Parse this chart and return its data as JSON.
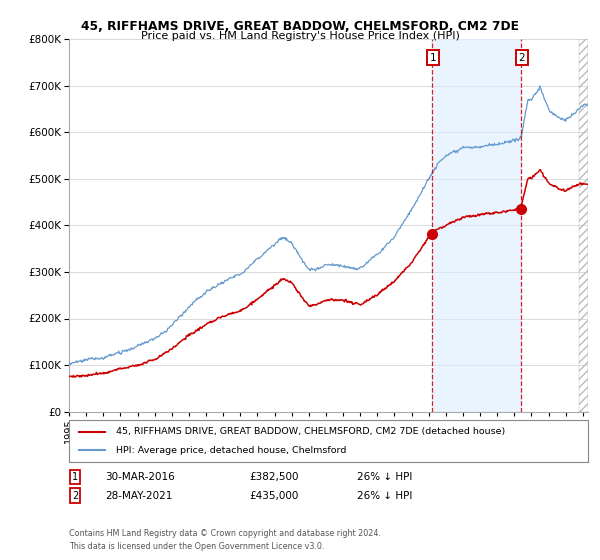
{
  "title_line1": "45, RIFFHAMS DRIVE, GREAT BADDOW, CHELMSFORD, CM2 7DE",
  "title_line2": "Price paid vs. HM Land Registry's House Price Index (HPI)",
  "sale1": {
    "date": "30-MAR-2016",
    "price": 382500,
    "pct": "26% ↓ HPI",
    "year": 2016.22
  },
  "sale2": {
    "date": "28-MAY-2021",
    "price": 435000,
    "pct": "26% ↓ HPI",
    "year": 2021.4
  },
  "legend_red": "45, RIFFHAMS DRIVE, GREAT BADDOW, CHELMSFORD, CM2 7DE (detached house)",
  "legend_blue": "HPI: Average price, detached house, Chelmsford",
  "footnote": "Contains HM Land Registry data © Crown copyright and database right 2024.\nThis data is licensed under the Open Government Licence v3.0.",
  "red_color": "#cc0000",
  "blue_color": "#6699cc",
  "shade_color": "#ddeeff",
  "vline_color": "#cc0000",
  "background_color": "#ffffff",
  "ylim": [
    0,
    800000
  ],
  "xlim_start": 1995.0,
  "xlim_end": 2025.3
}
